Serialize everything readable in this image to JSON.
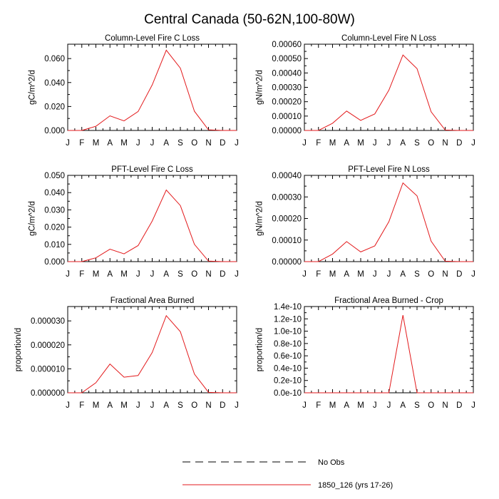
{
  "title": "Central Canada (50-62N,100-80W)",
  "colors": {
    "model_line": "#e31a1c",
    "obs_line": "#000000",
    "axis": "#000000"
  },
  "legend": {
    "entries": [
      {
        "label": "No Obs",
        "style": "dashed",
        "color": "#000000"
      },
      {
        "label": "1850_126 (yrs 17-26)",
        "style": "solid",
        "color": "#e31a1c"
      }
    ]
  },
  "chart_data": [
    {
      "type": "line",
      "title": "Column-Level Fire C Loss",
      "ylabel": "gC/m^2/d",
      "xlabel": "",
      "x_tick_labels": [
        "J",
        "F",
        "M",
        "A",
        "M",
        "J",
        "J",
        "A",
        "S",
        "O",
        "N",
        "D",
        "J"
      ],
      "ylim": [
        0,
        0.072
      ],
      "y_ticks": [
        0,
        0.02,
        0.04,
        0.06
      ],
      "y_tick_labels": [
        "0.000",
        "0.020",
        "0.040",
        "0.060"
      ],
      "series": [
        {
          "name": "1850_126 (yrs 17-26)",
          "x": [
            0,
            1,
            2,
            3,
            4,
            5,
            6,
            7,
            8,
            9,
            10,
            11,
            12
          ],
          "values": [
            0.0,
            0.0,
            0.0035,
            0.0122,
            0.008,
            0.0158,
            0.038,
            0.067,
            0.052,
            0.016,
            0.0005,
            0.0,
            0.0
          ]
        }
      ]
    },
    {
      "type": "line",
      "title": "Column-Level Fire N Loss",
      "ylabel": "gN/m^2/d",
      "xlabel": "",
      "x_tick_labels": [
        "J",
        "F",
        "M",
        "A",
        "M",
        "J",
        "J",
        "A",
        "S",
        "O",
        "N",
        "D",
        "J"
      ],
      "ylim": [
        0,
        0.0006
      ],
      "y_ticks": [
        0,
        0.0001,
        0.0002,
        0.0003,
        0.0004,
        0.0005,
        0.0006
      ],
      "y_tick_labels": [
        "0.00000",
        "0.00010",
        "0.00020",
        "0.00030",
        "0.00040",
        "0.00050",
        "0.00060"
      ],
      "series": [
        {
          "name": "1850_126 (yrs 17-26)",
          "x": [
            0,
            1,
            2,
            3,
            4,
            5,
            6,
            7,
            8,
            9,
            10,
            11,
            12
          ],
          "values": [
            0.0,
            0.0,
            5e-05,
            0.000135,
            7e-05,
            0.000115,
            0.00028,
            0.000525,
            0.00043,
            0.00013,
            3e-06,
            0.0,
            0.0
          ]
        }
      ]
    },
    {
      "type": "line",
      "title": "PFT-Level Fire C Loss",
      "ylabel": "gC/m^2/d",
      "xlabel": "",
      "x_tick_labels": [
        "J",
        "F",
        "M",
        "A",
        "M",
        "J",
        "J",
        "A",
        "S",
        "O",
        "N",
        "D",
        "J"
      ],
      "ylim": [
        0,
        0.05
      ],
      "y_ticks": [
        0,
        0.01,
        0.02,
        0.03,
        0.04,
        0.05
      ],
      "y_tick_labels": [
        "0.000",
        "0.010",
        "0.020",
        "0.030",
        "0.040",
        "0.050"
      ],
      "series": [
        {
          "name": "1850_126 (yrs 17-26)",
          "x": [
            0,
            1,
            2,
            3,
            4,
            5,
            6,
            7,
            8,
            9,
            10,
            11,
            12
          ],
          "values": [
            0.0,
            0.0,
            0.0022,
            0.0072,
            0.0045,
            0.0093,
            0.0235,
            0.0415,
            0.0325,
            0.01,
            0.0003,
            0.0,
            0.0
          ]
        }
      ]
    },
    {
      "type": "line",
      "title": "PFT-Level Fire N Loss",
      "ylabel": "gN/m^2/d",
      "xlabel": "",
      "x_tick_labels": [
        "J",
        "F",
        "M",
        "A",
        "M",
        "J",
        "J",
        "A",
        "S",
        "O",
        "N",
        "D",
        "J"
      ],
      "ylim": [
        0,
        0.0004
      ],
      "y_ticks": [
        0,
        0.0001,
        0.0002,
        0.0003,
        0.0004
      ],
      "y_tick_labels": [
        "0.00000",
        "0.00010",
        "0.00020",
        "0.00030",
        "0.00040"
      ],
      "series": [
        {
          "name": "1850_126 (yrs 17-26)",
          "x": [
            0,
            1,
            2,
            3,
            4,
            5,
            6,
            7,
            8,
            9,
            10,
            11,
            12
          ],
          "values": [
            0.0,
            0.0,
            3.5e-05,
            9.3e-05,
            4.5e-05,
            7.3e-05,
            0.000185,
            0.000365,
            0.000305,
            9.5e-05,
            2e-06,
            0.0,
            0.0
          ]
        }
      ]
    },
    {
      "type": "line",
      "title": "Fractional Area Burned",
      "ylabel": "proportion/d",
      "xlabel": "",
      "x_tick_labels": [
        "J",
        "F",
        "M",
        "A",
        "M",
        "J",
        "J",
        "A",
        "S",
        "O",
        "N",
        "D",
        "J"
      ],
      "ylim": [
        0,
        3.6e-05
      ],
      "y_ticks": [
        0,
        1e-05,
        2e-05,
        3e-05
      ],
      "y_tick_labels": [
        "0.000000",
        "0.000010",
        "0.000020",
        "0.000030"
      ],
      "series": [
        {
          "name": "1850_126 (yrs 17-26)",
          "x": [
            0,
            1,
            2,
            3,
            4,
            5,
            6,
            7,
            8,
            9,
            10,
            11,
            12
          ],
          "values": [
            0.0,
            0.0,
            4.2e-06,
            1.2e-05,
            6.5e-06,
            7.2e-06,
            1.68e-05,
            3.22e-05,
            2.55e-05,
            7.8e-06,
            2e-07,
            0.0,
            0.0
          ]
        }
      ]
    },
    {
      "type": "line",
      "title": "Fractional Area Burned - Crop",
      "ylabel": "proportion/d",
      "xlabel": "",
      "x_tick_labels": [
        "J",
        "F",
        "M",
        "A",
        "M",
        "J",
        "J",
        "A",
        "S",
        "O",
        "N",
        "D",
        "J"
      ],
      "ylim": [
        0,
        1.4e-10
      ],
      "y_ticks": [
        0,
        2e-11,
        4e-11,
        6e-11,
        8e-11,
        1e-10,
        1.2e-10,
        1.4e-10
      ],
      "y_tick_labels": [
        "0.0e-10",
        "0.2e-10",
        "0.4e-10",
        "0.6e-10",
        "0.8e-10",
        "1.0e-10",
        "1.2e-10",
        "1.4e-10"
      ],
      "series": [
        {
          "name": "1850_126 (yrs 17-26)",
          "x": [
            0,
            1,
            2,
            3,
            4,
            5,
            6,
            7,
            8,
            9,
            10,
            11,
            12
          ],
          "values": [
            0,
            0,
            0,
            0,
            0,
            0,
            0,
            1.26e-10,
            0,
            0,
            0,
            0,
            0
          ]
        }
      ]
    }
  ]
}
